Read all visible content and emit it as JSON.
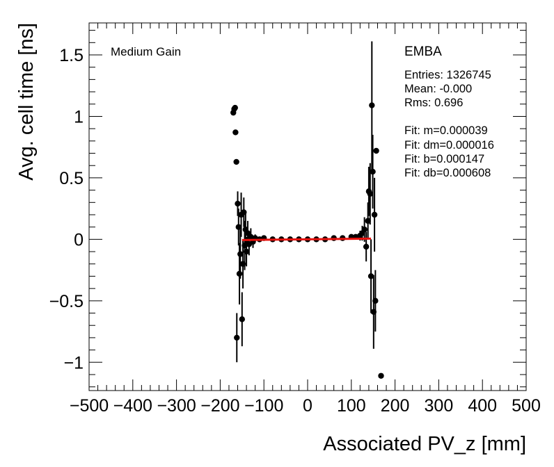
{
  "chart_data": {
    "type": "scatter",
    "xlabel": "Associated PV_z [mm]",
    "ylabel": "Avg. cell time [ns]",
    "xlim": [
      -500,
      500
    ],
    "ylim": [
      -1.23,
      1.76
    ],
    "x_ticks": [
      -500,
      -400,
      -300,
      -200,
      -100,
      0,
      100,
      200,
      300,
      400,
      500
    ],
    "x_tick_labels": [
      "−500",
      "−400",
      "−300",
      "−200",
      "−100",
      "0",
      "100",
      "200",
      "300",
      "400",
      "500"
    ],
    "y_ticks": [
      -1,
      -0.5,
      0,
      0.5,
      1,
      1.5
    ],
    "y_tick_labels": [
      "−1",
      "−0.5",
      "0",
      "0.5",
      "1",
      "1.5"
    ],
    "grid": false,
    "annotations": {
      "gain_label": "Medium Gain",
      "partition": "EMBA",
      "stats": [
        "Entries: 1326745",
        "Mean: -0.000",
        "Rms: 0.696"
      ],
      "fit": [
        "Fit: m=0.000039",
        "Fit: dm=0.000016",
        "Fit: b=0.000147",
        "Fit: db=0.000608"
      ]
    },
    "series": [
      {
        "style": "points-with-errors",
        "color": "#000000",
        "points": [
          {
            "x": -170,
            "y": 1.03,
            "err": 0.0
          },
          {
            "x": -168,
            "y": 1.06,
            "err": 0.0
          },
          {
            "x": -166,
            "y": 1.07,
            "err": 0.0
          },
          {
            "x": -165,
            "y": 0.87,
            "err": 0.0
          },
          {
            "x": -163,
            "y": 0.63,
            "err": 0.0
          },
          {
            "x": -162,
            "y": -0.8,
            "err": 0.2
          },
          {
            "x": -160,
            "y": 0.29,
            "err": 0.1
          },
          {
            "x": -158,
            "y": 0.1,
            "err": 0.15
          },
          {
            "x": -156,
            "y": -0.28,
            "err": 0.25
          },
          {
            "x": -154,
            "y": -0.12,
            "err": 0.2
          },
          {
            "x": -152,
            "y": 0.2,
            "err": 0.18
          },
          {
            "x": -150,
            "y": -0.65,
            "err": 0.22
          },
          {
            "x": -148,
            "y": -0.2,
            "err": 0.2
          },
          {
            "x": -146,
            "y": 0.22,
            "err": 0.12
          },
          {
            "x": -144,
            "y": -0.05,
            "err": 0.2
          },
          {
            "x": -142,
            "y": 0.08,
            "err": 0.14
          },
          {
            "x": -140,
            "y": -0.1,
            "err": 0.12
          },
          {
            "x": -137,
            "y": 0.05,
            "err": 0.1
          },
          {
            "x": -134,
            "y": -0.04,
            "err": 0.09
          },
          {
            "x": -130,
            "y": 0.02,
            "err": 0.07
          },
          {
            "x": -125,
            "y": -0.02,
            "err": 0.05
          },
          {
            "x": -120,
            "y": 0.01,
            "err": 0.03
          },
          {
            "x": -110,
            "y": 0.0,
            "err": 0.02
          },
          {
            "x": -100,
            "y": 0.01,
            "err": 0.015
          },
          {
            "x": -80,
            "y": 0.0,
            "err": 0.01
          },
          {
            "x": -60,
            "y": 0.0,
            "err": 0.008
          },
          {
            "x": -40,
            "y": 0.0,
            "err": 0.006
          },
          {
            "x": -20,
            "y": 0.0,
            "err": 0.005
          },
          {
            "x": 0,
            "y": 0.0,
            "err": 0.005
          },
          {
            "x": 20,
            "y": 0.0,
            "err": 0.005
          },
          {
            "x": 40,
            "y": 0.0,
            "err": 0.006
          },
          {
            "x": 60,
            "y": 0.01,
            "err": 0.008
          },
          {
            "x": 80,
            "y": 0.01,
            "err": 0.01
          },
          {
            "x": 100,
            "y": 0.02,
            "err": 0.015
          },
          {
            "x": 110,
            "y": 0.02,
            "err": 0.02
          },
          {
            "x": 120,
            "y": 0.03,
            "err": 0.04
          },
          {
            "x": 125,
            "y": 0.05,
            "err": 0.06
          },
          {
            "x": 130,
            "y": 0.08,
            "err": 0.1
          },
          {
            "x": 134,
            "y": -0.06,
            "err": 0.12
          },
          {
            "x": 138,
            "y": 0.15,
            "err": 0.15
          },
          {
            "x": 140,
            "y": 0.39,
            "err": 0.2
          },
          {
            "x": 143,
            "y": 0.37,
            "err": 0.25
          },
          {
            "x": 145,
            "y": -0.3,
            "err": 0.3
          },
          {
            "x": 147,
            "y": 1.09,
            "err": 0.52
          },
          {
            "x": 149,
            "y": 0.55,
            "err": 0.3
          },
          {
            "x": 151,
            "y": -0.59,
            "err": 0.3
          },
          {
            "x": 153,
            "y": 0.2,
            "err": 0.3
          },
          {
            "x": 155,
            "y": -0.5,
            "err": 0.25
          },
          {
            "x": 157,
            "y": 0.72,
            "err": 0.0
          },
          {
            "x": 168,
            "y": -1.11,
            "err": 0.0
          }
        ]
      },
      {
        "name": "Fit",
        "style": "line",
        "color": "#e8120e",
        "x": [
          -150,
          145
        ],
        "y": [
          -0.0057,
          0.0057
        ]
      }
    ]
  }
}
